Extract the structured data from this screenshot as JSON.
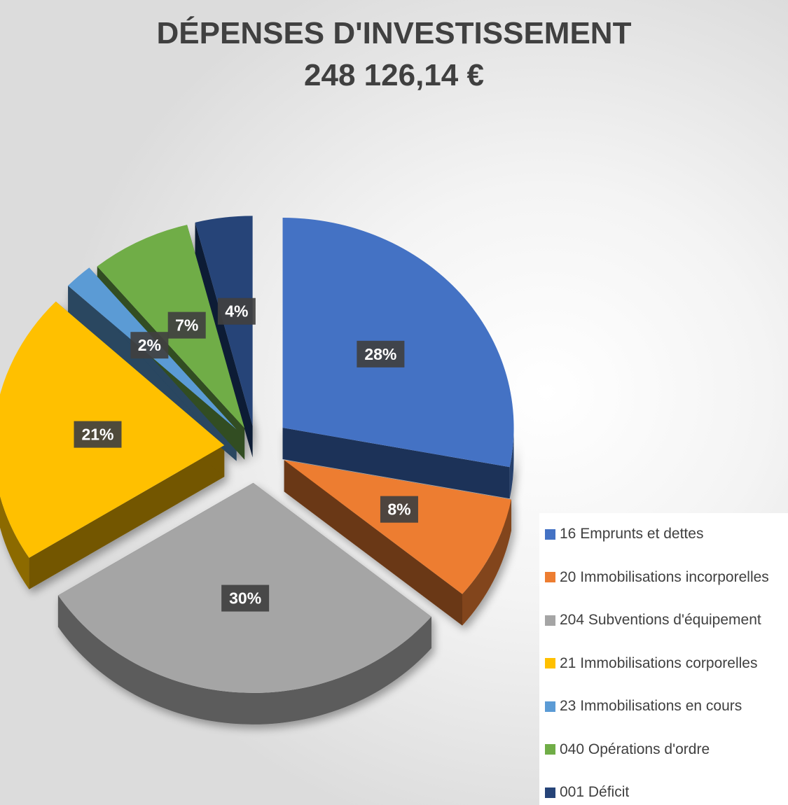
{
  "chart_data": {
    "type": "pie",
    "title": "DÉPENSES D'INVESTISSEMENT",
    "subtitle": "248 126,14 €",
    "legend_position": "bottom-right",
    "exploded": true,
    "three_d": true,
    "slices": [
      {
        "label": "16 Emprunts et dettes",
        "value": 28,
        "display": "28%",
        "color": "#4472C4"
      },
      {
        "label": "20 Immobilisations incorporelles",
        "value": 8,
        "display": "8%",
        "color": "#ED7D31"
      },
      {
        "label": "204 Subventions d'équipement",
        "value": 30,
        "display": "30%",
        "color": "#A5A5A5"
      },
      {
        "label": "21 Immobilisations corporelles",
        "value": 21,
        "display": "21%",
        "color": "#FFC000"
      },
      {
        "label": "23 Immobilisations en cours",
        "value": 2,
        "display": "2%",
        "color": "#5B9BD5"
      },
      {
        "label": "040 Opérations d'ordre",
        "value": 7,
        "display": "7%",
        "color": "#70AD47"
      },
      {
        "label": "001 Déficit",
        "value": 4,
        "display": "4%",
        "color": "#264478"
      }
    ]
  }
}
